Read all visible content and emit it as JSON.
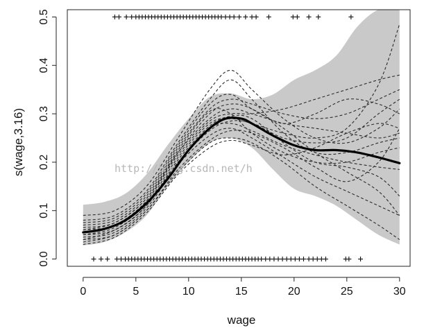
{
  "chart_data": {
    "type": "line",
    "title": "",
    "xlabel": "wage",
    "ylabel": "s(wage,3.16)",
    "xlim": [
      -1.5,
      31
    ],
    "ylim": [
      -0.015,
      0.515
    ],
    "xticks": [
      0,
      5,
      10,
      15,
      20,
      25,
      30
    ],
    "yticks": [
      0.0,
      0.1,
      0.2,
      0.3,
      0.4,
      0.5
    ],
    "ytick_labels": [
      "0.0",
      "0.1",
      "0.2",
      "0.3",
      "0.4",
      "0.5"
    ],
    "grid": false,
    "legend": "none",
    "watermark": "http://blog.csdn.net/h",
    "band": {
      "x": [
        0,
        2,
        4,
        6,
        8,
        10,
        12,
        14,
        16,
        18,
        20,
        22,
        24,
        26,
        28,
        30
      ],
      "upper": [
        0.112,
        0.118,
        0.135,
        0.175,
        0.235,
        0.29,
        0.335,
        0.342,
        0.33,
        0.34,
        0.37,
        0.39,
        0.42,
        0.48,
        0.515,
        0.515
      ],
      "lower": [
        0.028,
        0.035,
        0.055,
        0.09,
        0.15,
        0.2,
        0.24,
        0.25,
        0.23,
        0.185,
        0.145,
        0.13,
        0.11,
        0.08,
        0.05,
        0.03
      ]
    },
    "series": [
      {
        "style": "solid",
        "x": [
          0,
          2,
          4,
          6,
          8,
          10,
          12,
          13.5,
          15,
          16,
          18,
          20,
          22,
          24,
          26,
          28,
          30
        ],
        "values": [
          0.055,
          0.062,
          0.08,
          0.115,
          0.165,
          0.225,
          0.27,
          0.29,
          0.29,
          0.28,
          0.255,
          0.235,
          0.225,
          0.225,
          0.22,
          0.21,
          0.198
        ]
      }
    ],
    "simulated_curves": {
      "x": [
        0,
        3,
        6,
        9,
        12,
        14,
        16,
        19,
        22,
        25,
        28,
        30
      ],
      "curves": [
        [
          0.05,
          0.06,
          0.11,
          0.2,
          0.27,
          0.28,
          0.265,
          0.235,
          0.215,
          0.2,
          0.19,
          0.185
        ],
        [
          0.07,
          0.08,
          0.13,
          0.23,
          0.31,
          0.33,
          0.32,
          0.3,
          0.29,
          0.3,
          0.33,
          0.35
        ],
        [
          0.04,
          0.05,
          0.1,
          0.18,
          0.24,
          0.25,
          0.24,
          0.2,
          0.15,
          0.11,
          0.07,
          0.04
        ],
        [
          0.06,
          0.07,
          0.12,
          0.22,
          0.3,
          0.32,
          0.31,
          0.27,
          0.22,
          0.18,
          0.14,
          0.09
        ],
        [
          0.05,
          0.065,
          0.115,
          0.21,
          0.28,
          0.29,
          0.28,
          0.26,
          0.25,
          0.27,
          0.36,
          0.485
        ],
        [
          0.08,
          0.09,
          0.14,
          0.24,
          0.33,
          0.37,
          0.33,
          0.26,
          0.22,
          0.22,
          0.24,
          0.25
        ],
        [
          0.03,
          0.045,
          0.095,
          0.175,
          0.23,
          0.245,
          0.235,
          0.215,
          0.23,
          0.26,
          0.28,
          0.27
        ],
        [
          0.065,
          0.075,
          0.125,
          0.225,
          0.305,
          0.3,
          0.26,
          0.22,
          0.2,
          0.2,
          0.22,
          0.23
        ],
        [
          0.055,
          0.07,
          0.12,
          0.215,
          0.285,
          0.3,
          0.3,
          0.31,
          0.33,
          0.35,
          0.37,
          0.38
        ],
        [
          0.045,
          0.055,
          0.105,
          0.195,
          0.255,
          0.27,
          0.25,
          0.21,
          0.17,
          0.14,
          0.11,
          0.09
        ],
        [
          0.09,
          0.1,
          0.15,
          0.25,
          0.35,
          0.39,
          0.35,
          0.29,
          0.25,
          0.24,
          0.27,
          0.31
        ],
        [
          0.04,
          0.06,
          0.11,
          0.2,
          0.265,
          0.285,
          0.28,
          0.25,
          0.24,
          0.25,
          0.3,
          0.33
        ],
        [
          0.06,
          0.075,
          0.125,
          0.22,
          0.29,
          0.31,
          0.3,
          0.28,
          0.27,
          0.26,
          0.25,
          0.26
        ],
        [
          0.035,
          0.05,
          0.1,
          0.185,
          0.245,
          0.265,
          0.26,
          0.23,
          0.19,
          0.16,
          0.2,
          0.27
        ],
        [
          0.075,
          0.085,
          0.135,
          0.235,
          0.32,
          0.34,
          0.31,
          0.28,
          0.3,
          0.33,
          0.32,
          0.3
        ],
        [
          0.05,
          0.06,
          0.11,
          0.205,
          0.275,
          0.295,
          0.29,
          0.24,
          0.2,
          0.19,
          0.17,
          0.13
        ]
      ]
    },
    "rugs": [
      {
        "y": 0.5,
        "x": [
          3,
          3.4,
          4.1,
          4.6,
          5,
          5.3,
          5.6,
          5.9,
          6.2,
          6.5,
          6.8,
          7.1,
          7.4,
          7.7,
          8,
          8.3,
          8.6,
          8.9,
          9.2,
          9.5,
          9.8,
          10.1,
          10.4,
          10.7,
          11,
          11.3,
          11.6,
          11.9,
          12.2,
          12.5,
          12.8,
          13.1,
          13.5,
          13.9,
          14.3,
          14.8,
          15.4,
          16,
          16.4,
          17.6,
          19.9,
          20.3,
          21.4,
          22.3,
          25.4
        ]
      },
      {
        "y": 0.0,
        "x": [
          1,
          1.7,
          2.3,
          3.2,
          3.6,
          4,
          4.3,
          4.6,
          4.9,
          5.2,
          5.5,
          5.8,
          6.1,
          6.4,
          6.7,
          7,
          7.3,
          7.6,
          7.9,
          8.2,
          8.5,
          8.8,
          9.1,
          9.4,
          9.7,
          10,
          10.3,
          10.6,
          10.9,
          11.2,
          11.5,
          11.8,
          12.1,
          12.4,
          12.7,
          13,
          13.3,
          13.6,
          13.9,
          14.2,
          14.5,
          14.8,
          15.1,
          15.4,
          15.7,
          16,
          16.3,
          16.6,
          16.9,
          17.3,
          17.7,
          18.1,
          18.5,
          18.9,
          19.3,
          19.7,
          20.1,
          20.5,
          20.9,
          21.4,
          21.8,
          22.2,
          22.6,
          23,
          24.9,
          25.2,
          26.3
        ]
      }
    ]
  }
}
